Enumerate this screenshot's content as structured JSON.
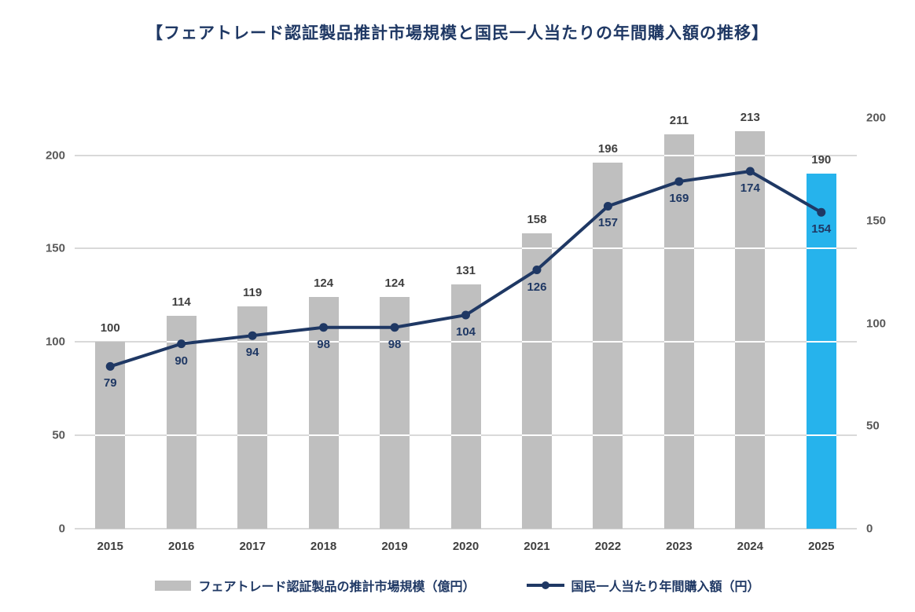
{
  "title": "【フェアトレード認証製品推計市場規模と国民一人当たりの年間購入額の推移】",
  "colors": {
    "bar": "#BFBFBF",
    "bar_highlight": "#26B3EC",
    "line": "#1F3864",
    "bar_label": "#404040",
    "line_label": "#1F3864",
    "axis_label": "#595959",
    "x_tick_label": "#404040",
    "gridline": "#D9D9D9",
    "title": "#1F3864"
  },
  "chart_data": {
    "type": "combo-bar-line",
    "title": "【フェアトレード認証製品推計市場規模と国民一人当たりの年間購入額の推移】",
    "categories": [
      "2015",
      "2016",
      "2017",
      "2018",
      "2019",
      "2020",
      "2021",
      "2022",
      "2023",
      "2024",
      "2025"
    ],
    "series": [
      {
        "name": "フェアトレード認証製品の推計市場規模（億円）",
        "type": "bar",
        "axis": "left",
        "values": [
          100,
          114,
          119,
          124,
          124,
          131,
          158,
          196,
          211,
          213,
          190
        ]
      },
      {
        "name": "国民一人当たり年間購入額（円）",
        "type": "line",
        "axis": "right",
        "values": [
          79,
          90,
          94,
          98,
          98,
          104,
          126,
          157,
          169,
          174,
          154
        ]
      }
    ],
    "left_axis": {
      "ticks": [
        0,
        50,
        100,
        150,
        200
      ],
      "max": 220
    },
    "right_axis": {
      "ticks": [
        0,
        50,
        100,
        150,
        200
      ],
      "max": 200
    },
    "highlight_category": "2025",
    "grid": true,
    "legend_position": "bottom"
  }
}
